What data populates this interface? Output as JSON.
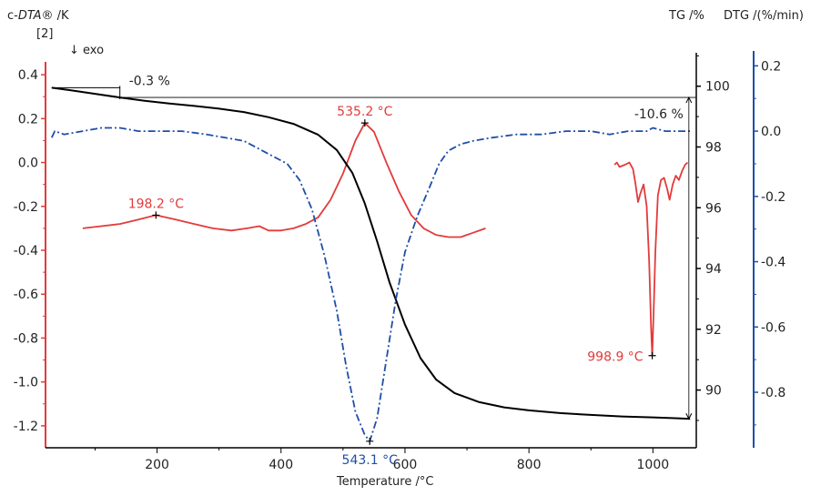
{
  "chart_data": {
    "type": "line",
    "xlabel": "Temperature /°C",
    "x_ticks": [
      200,
      400,
      600,
      800,
      1000
    ],
    "xlim": [
      20,
      1070
    ],
    "axes": {
      "dta": {
        "label": "c-DTA® /K",
        "segment": "[2]",
        "color": "#e23b3b",
        "ylim": [
          -1.3,
          0.5
        ],
        "ticks": [
          0.4,
          0.2,
          0.0,
          -0.2,
          -0.4,
          -0.6,
          -0.8,
          -1.0,
          -1.2
        ]
      },
      "tg": {
        "label": "TG /%",
        "color": "#000000",
        "ylim": [
          88.1,
          101.1
        ],
        "ticks": [
          100,
          98,
          96,
          94,
          92,
          90
        ]
      },
      "dtg": {
        "label": "DTG /(%/min)",
        "color": "#1f4ea8",
        "ylim": [
          -0.97,
          0.24
        ],
        "ticks": [
          0.2,
          0.0,
          -0.2,
          -0.4,
          -0.6,
          -0.8
        ]
      }
    },
    "series": [
      {
        "axis": "dta",
        "style": "solid",
        "color": "#e23b3b",
        "segments": [
          [
            [
              80,
              -0.3
            ],
            [
              110,
              -0.29
            ],
            [
              140,
              -0.28
            ],
            [
              170,
              -0.26
            ],
            [
              198.2,
              -0.24
            ],
            [
              230,
              -0.26
            ],
            [
              260,
              -0.28
            ],
            [
              290,
              -0.3
            ],
            [
              320,
              -0.31
            ],
            [
              345,
              -0.3
            ],
            [
              365,
              -0.29
            ],
            [
              380,
              -0.31
            ],
            [
              400,
              -0.31
            ],
            [
              420,
              -0.3
            ],
            [
              440,
              -0.28
            ],
            [
              460,
              -0.25
            ],
            [
              480,
              -0.17
            ],
            [
              500,
              -0.05
            ],
            [
              520,
              0.1
            ],
            [
              535.2,
              0.18
            ],
            [
              550,
              0.14
            ],
            [
              570,
              0.0
            ],
            [
              590,
              -0.13
            ],
            [
              610,
              -0.24
            ],
            [
              630,
              -0.3
            ],
            [
              650,
              -0.33
            ],
            [
              670,
              -0.34
            ],
            [
              690,
              -0.34
            ],
            [
              710,
              -0.32
            ],
            [
              730,
              -0.3
            ]
          ],
          [
            [
              938,
              -0.01
            ],
            [
              942,
              0.0
            ],
            [
              946,
              -0.02
            ],
            [
              955,
              -0.01
            ],
            [
              962,
              0.0
            ],
            [
              968,
              -0.03
            ],
            [
              972,
              -0.1
            ],
            [
              976,
              -0.18
            ],
            [
              980,
              -0.14
            ],
            [
              985,
              -0.1
            ],
            [
              990,
              -0.2
            ],
            [
              994,
              -0.45
            ],
            [
              997,
              -0.75
            ],
            [
              998.9,
              -0.88
            ],
            [
              1001,
              -0.7
            ],
            [
              1004,
              -0.4
            ],
            [
              1008,
              -0.15
            ],
            [
              1013,
              -0.08
            ],
            [
              1018,
              -0.07
            ],
            [
              1023,
              -0.12
            ],
            [
              1027,
              -0.17
            ],
            [
              1032,
              -0.1
            ],
            [
              1037,
              -0.06
            ],
            [
              1042,
              -0.08
            ],
            [
              1047,
              -0.04
            ],
            [
              1052,
              -0.01
            ],
            [
              1056,
              0.0
            ]
          ]
        ]
      },
      {
        "axis": "tg",
        "style": "solid",
        "color": "#000000",
        "segments": [
          [
            [
              30,
              99.95
            ],
            [
              60,
              99.87
            ],
            [
              100,
              99.75
            ],
            [
              140,
              99.63
            ],
            [
              180,
              99.52
            ],
            [
              220,
              99.43
            ],
            [
              260,
              99.35
            ],
            [
              300,
              99.26
            ],
            [
              340,
              99.15
            ],
            [
              380,
              98.98
            ],
            [
              420,
              98.76
            ],
            [
              460,
              98.4
            ],
            [
              490,
              97.9
            ],
            [
              515,
              97.15
            ],
            [
              535,
              96.15
            ],
            [
              555,
              94.9
            ],
            [
              575,
              93.55
            ],
            [
              600,
              92.15
            ],
            [
              625,
              91.05
            ],
            [
              650,
              90.35
            ],
            [
              680,
              89.9
            ],
            [
              720,
              89.6
            ],
            [
              760,
              89.43
            ],
            [
              800,
              89.33
            ],
            [
              850,
              89.24
            ],
            [
              900,
              89.18
            ],
            [
              950,
              89.13
            ],
            [
              1000,
              89.1
            ],
            [
              1040,
              89.07
            ],
            [
              1060,
              89.05
            ]
          ]
        ]
      },
      {
        "axis": "dtg",
        "style": "dashdot",
        "color": "#1f4ea8",
        "segments": [
          [
            [
              30,
              -0.02
            ],
            [
              35,
              0.0
            ],
            [
              50,
              -0.01
            ],
            [
              80,
              0.0
            ],
            [
              110,
              0.01
            ],
            [
              140,
              0.01
            ],
            [
              170,
              0.0
            ],
            [
              200,
              0.0
            ],
            [
              240,
              0.0
            ],
            [
              280,
              -0.01
            ],
            [
              310,
              -0.02
            ],
            [
              340,
              -0.03
            ],
            [
              370,
              -0.06
            ],
            [
              390,
              -0.08
            ],
            [
              410,
              -0.1
            ],
            [
              430,
              -0.15
            ],
            [
              450,
              -0.24
            ],
            [
              470,
              -0.38
            ],
            [
              490,
              -0.55
            ],
            [
              505,
              -0.72
            ],
            [
              520,
              -0.86
            ],
            [
              535,
              -0.93
            ],
            [
              543.1,
              -0.95
            ],
            [
              555,
              -0.88
            ],
            [
              570,
              -0.7
            ],
            [
              585,
              -0.52
            ],
            [
              600,
              -0.37
            ],
            [
              620,
              -0.26
            ],
            [
              640,
              -0.17
            ],
            [
              655,
              -0.1
            ],
            [
              670,
              -0.06
            ],
            [
              690,
              -0.04
            ],
            [
              710,
              -0.03
            ],
            [
              740,
              -0.02
            ],
            [
              780,
              -0.01
            ],
            [
              820,
              -0.01
            ],
            [
              860,
              0.0
            ],
            [
              900,
              0.0
            ],
            [
              930,
              -0.01
            ],
            [
              960,
              0.0
            ],
            [
              990,
              0.0
            ],
            [
              1000,
              0.01
            ],
            [
              1020,
              0.0
            ],
            [
              1050,
              0.0
            ],
            [
              1060,
              0.0
            ]
          ]
        ]
      }
    ],
    "annotations": [
      {
        "text": "535.2 °C",
        "x": 535.2,
        "y": 0.18,
        "axis": "dta",
        "color": "#e23b3b",
        "anchor": "above"
      },
      {
        "text": "198.2 °C",
        "x": 198.2,
        "y": -0.24,
        "axis": "dta",
        "color": "#e23b3b",
        "anchor": "above"
      },
      {
        "text": "998.9 °C",
        "x": 998.9,
        "y": -0.88,
        "axis": "dta",
        "color": "#e23b3b",
        "anchor": "left"
      },
      {
        "text": "543.1 °C",
        "x": 543.1,
        "y": -0.95,
        "axis": "dtg",
        "color": "#1f4ea8",
        "anchor": "below"
      }
    ],
    "mass_steps": [
      {
        "text": "-0.3 %",
        "from_x": 30,
        "to_x": 140,
        "tg_start": 99.95,
        "tg_end": 99.63
      },
      {
        "text": "-10.6 %",
        "at_x": 1058,
        "tg_top": 99.63,
        "tg_bottom": 89.05
      }
    ],
    "exo_label": "↓ exo"
  }
}
